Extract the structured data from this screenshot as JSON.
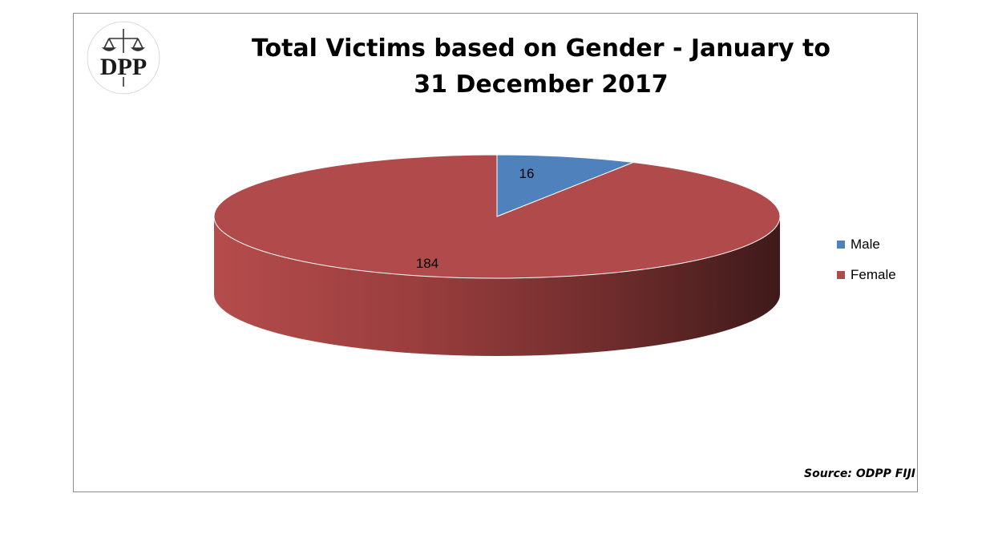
{
  "logo": {
    "text": "DPP"
  },
  "title": {
    "line1": "Total Victims based on Gender -  January to",
    "line2": "31 December 2017"
  },
  "source": "Source: ODPP FIJI",
  "chart_data": {
    "type": "pie",
    "categories": [
      "Male",
      "Female"
    ],
    "values": [
      16,
      184
    ],
    "data_labels": [
      "16",
      "184"
    ],
    "legend": {
      "position": "right",
      "entries": [
        "Male",
        "Female"
      ]
    },
    "colors": {
      "Male": "#4F81BD",
      "Female": "#B14A4A"
    },
    "style": "3d"
  }
}
